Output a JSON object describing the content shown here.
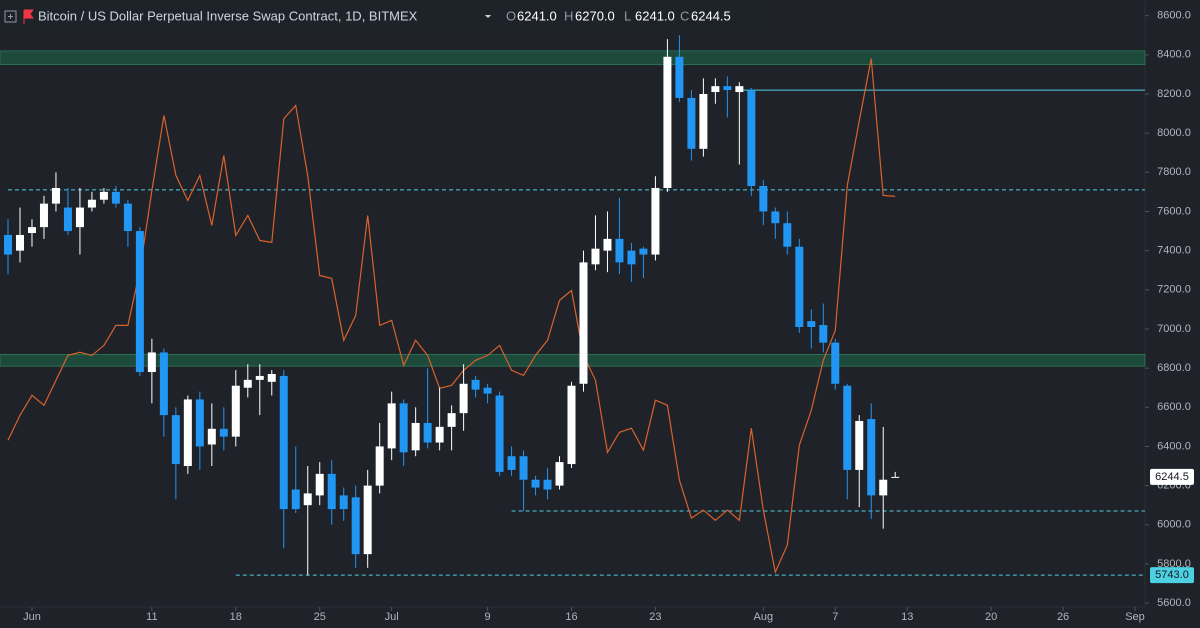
{
  "chart_data": {
    "type": "candlestick",
    "title": "Bitcoin / US Dollar Perpetual Inverse Swap Contract, 1D, BITMEX",
    "ohlc_legend": [
      {
        "key": "O",
        "label": "6241.0"
      },
      {
        "key": "H",
        "label": "6270.0"
      },
      {
        "key": "L",
        "label": "6241.0"
      },
      {
        "key": "C",
        "label": "6244.5"
      }
    ],
    "x": [
      "May 30",
      "May 31",
      "Jun 1",
      "Jun 2",
      "Jun 3",
      "Jun 4",
      "Jun 5",
      "Jun 6",
      "Jun 7",
      "Jun 8",
      "Jun 9",
      "Jun 10",
      "Jun 11",
      "Jun 12",
      "Jun 13",
      "Jun 14",
      "Jun 15",
      "Jun 16",
      "Jun 17",
      "Jun 18",
      "Jun 19",
      "Jun 20",
      "Jun 21",
      "Jun 22",
      "Jun 23",
      "Jun 24",
      "Jun 25",
      "Jun 26",
      "Jun 27",
      "Jun 28",
      "Jun 29",
      "Jun 30",
      "Jul 1",
      "Jul 2",
      "Jul 3",
      "Jul 4",
      "Jul 5",
      "Jul 6",
      "Jul 7",
      "Jul 8",
      "Jul 9",
      "Jul 10",
      "Jul 11",
      "Jul 12",
      "Jul 13",
      "Jul 14",
      "Jul 15",
      "Jul 16",
      "Jul 17",
      "Jul 18",
      "Jul 19",
      "Jul 20",
      "Jul 21",
      "Jul 22",
      "Jul 23",
      "Jul 24",
      "Jul 25",
      "Jul 26",
      "Jul 27",
      "Jul 28",
      "Jul 29",
      "Jul 30",
      "Jul 31",
      "Aug 1",
      "Aug 2",
      "Aug 3",
      "Aug 4",
      "Aug 5",
      "Aug 6",
      "Aug 7",
      "Aug 8",
      "Aug 9",
      "Aug 10",
      "Aug 11",
      "Aug 12"
    ],
    "open": [
      7480,
      7400,
      7490,
      7520,
      7640,
      7620,
      7520,
      7620,
      7660,
      7700,
      7640,
      7500,
      6780,
      6880,
      6560,
      6300,
      6640,
      6410,
      6490,
      6450,
      6700,
      6740,
      6730,
      6760,
      6180,
      6100,
      6150,
      6260,
      6150,
      6140,
      5850,
      6200,
      6390,
      6620,
      6380,
      6520,
      6420,
      6500,
      6570,
      6740,
      6700,
      6660,
      6350,
      6350,
      6230,
      6230,
      6200,
      6310,
      6720,
      7330,
      7400,
      7460,
      7400,
      7410,
      7380,
      7720,
      8390,
      8180,
      7920,
      8210,
      8240,
      8210,
      8220,
      7730,
      7600,
      7540,
      7420,
      7040,
      7020,
      6930,
      6710,
      6280,
      6540,
      6150,
      6241
    ],
    "high": [
      7560,
      7620,
      7560,
      7680,
      7800,
      7720,
      7720,
      7700,
      7720,
      7730,
      7660,
      7520,
      6950,
      6900,
      6600,
      6660,
      6680,
      6620,
      6600,
      6790,
      6820,
      6820,
      6790,
      6790,
      6400,
      6300,
      6320,
      6330,
      6190,
      6200,
      6280,
      6520,
      6680,
      6640,
      6600,
      6800,
      6700,
      6610,
      6820,
      6760,
      6720,
      6680,
      6400,
      6380,
      6250,
      6290,
      6350,
      6730,
      7400,
      7580,
      7600,
      7670,
      7440,
      7420,
      7780,
      8480,
      8500,
      8220,
      8280,
      8280,
      8290,
      8260,
      8230,
      7760,
      7620,
      7600,
      7460,
      7100,
      7130,
      6950,
      6720,
      6560,
      6620,
      6500,
      6270
    ],
    "low": [
      7280,
      7340,
      7420,
      7460,
      7600,
      7480,
      7380,
      7600,
      7640,
      7620,
      7420,
      6760,
      6620,
      6450,
      6130,
      6260,
      6280,
      6300,
      6380,
      6400,
      6650,
      6560,
      6660,
      5880,
      6060,
      5743,
      6100,
      6000,
      6020,
      5780,
      5780,
      6160,
      6330,
      6300,
      6350,
      6390,
      6380,
      6380,
      6480,
      6650,
      6620,
      6250,
      6250,
      6070,
      6150,
      6130,
      6180,
      6290,
      6680,
      7300,
      7290,
      7280,
      7240,
      7260,
      7350,
      7700,
      8160,
      7860,
      7880,
      8150,
      8080,
      7840,
      7680,
      7530,
      7460,
      7380,
      6980,
      6900,
      6880,
      6690,
      6130,
      6090,
      6030,
      5980,
      6241
    ],
    "close": [
      7380,
      7480,
      7520,
      7640,
      7720,
      7500,
      7620,
      7660,
      7700,
      7640,
      7500,
      6780,
      6880,
      6560,
      6310,
      6640,
      6400,
      6490,
      6450,
      6710,
      6740,
      6760,
      6770,
      6080,
      6080,
      6160,
      6260,
      6080,
      6080,
      5850,
      6200,
      6400,
      6620,
      6370,
      6520,
      6420,
      6500,
      6570,
      6720,
      6690,
      6670,
      6270,
      6280,
      6230,
      6190,
      6180,
      6320,
      6710,
      7340,
      7410,
      7460,
      7340,
      7330,
      7380,
      7720,
      8390,
      8180,
      7920,
      8200,
      8240,
      8220,
      8240,
      7730,
      7600,
      7540,
      7420,
      7010,
      7010,
      6930,
      6720,
      6280,
      6530,
      6150,
      6230,
      6244.5
    ],
    "up_color": "#ffffff",
    "down_color": "#2196f3",
    "line": {
      "color": "#d9622b",
      "values": [
        6432,
        6559,
        6661,
        6610,
        6738,
        6865,
        6881,
        6865,
        6916,
        7018,
        7018,
        7299,
        7707,
        8090,
        7784,
        7656,
        7784,
        7529,
        7886,
        7478,
        7580,
        7452,
        7442,
        8074,
        8141,
        7784,
        7273,
        7258,
        6942,
        7069,
        7580,
        7018,
        7044,
        6814,
        6942,
        6865,
        6697,
        6712,
        6789,
        6840,
        6865,
        6916,
        6789,
        6763,
        6865,
        6942,
        7146,
        7197,
        6865,
        6738,
        6370,
        6472,
        6493,
        6381,
        6636,
        6610,
        6228,
        6034,
        6075,
        6023,
        6075,
        6023,
        6493,
        6075,
        5758,
        5896,
        6406,
        6585,
        6840,
        6993,
        7733,
        8064,
        8381,
        7682,
        7677
      ]
    },
    "zones": [
      {
        "low": 8350,
        "high": 8420
      },
      {
        "low": 6810,
        "high": 6870
      }
    ],
    "zone_color": "#1d4a3a",
    "hlines": [
      {
        "value": 7710,
        "from": "May 30",
        "dashed": true
      },
      {
        "value": 8220,
        "from": "Jul 30",
        "dashed": false
      },
      {
        "value": 6070,
        "from": "Jul 11",
        "dashed": true
      },
      {
        "value": 5743,
        "from": "Jun 18",
        "dashed": true
      }
    ],
    "hline_color": "#4dd0e1",
    "price_labels": [
      {
        "value": 6244.5,
        "label": "6244.5",
        "bg": "#ffffff"
      },
      {
        "value": 5743,
        "label": "5743.0",
        "bg": "#4dd0e1"
      }
    ],
    "xlim": [
      "May 30",
      "Sep 2"
    ],
    "xticks": [
      {
        "value": "Jun 1",
        "label": "Jun"
      },
      {
        "value": "Jun 11",
        "label": "11"
      },
      {
        "value": "Jun 18",
        "label": "18"
      },
      {
        "value": "Jun 25",
        "label": "25"
      },
      {
        "value": "Jul 1",
        "label": "Jul"
      },
      {
        "value": "Jul 9",
        "label": "9"
      },
      {
        "value": "Jul 16",
        "label": "16"
      },
      {
        "value": "Jul 23",
        "label": "23"
      },
      {
        "value": "Aug 1",
        "label": "Aug"
      },
      {
        "value": "Aug 7",
        "label": "7"
      },
      {
        "value": "Aug 13",
        "label": "13"
      },
      {
        "value": "Aug 20",
        "label": "20"
      },
      {
        "value": "Aug 26",
        "label": "26"
      },
      {
        "value": "Sep 1",
        "label": "Sep"
      }
    ],
    "ylim": [
      5580,
      8680
    ],
    "yticks": [
      {
        "value": 5600,
        "label": "5600.0"
      },
      {
        "value": 5800,
        "label": "5800.0"
      },
      {
        "value": 6000,
        "label": "6000.0"
      },
      {
        "value": 6200,
        "label": "6200.0"
      },
      {
        "value": 6400,
        "label": "6400.0"
      },
      {
        "value": 6600,
        "label": "6600.0"
      },
      {
        "value": 6800,
        "label": "6800.0"
      },
      {
        "value": 7000,
        "label": "7000.0"
      },
      {
        "value": 7200,
        "label": "7200.0"
      },
      {
        "value": 7400,
        "label": "7400.0"
      },
      {
        "value": 7600,
        "label": "7600.0"
      },
      {
        "value": 7800,
        "label": "7800.0"
      },
      {
        "value": 8000,
        "label": "8000.0"
      },
      {
        "value": 8200,
        "label": "8200.0"
      },
      {
        "value": 8400,
        "label": "8400.0"
      },
      {
        "value": 8600,
        "label": "8600.0"
      }
    ]
  }
}
